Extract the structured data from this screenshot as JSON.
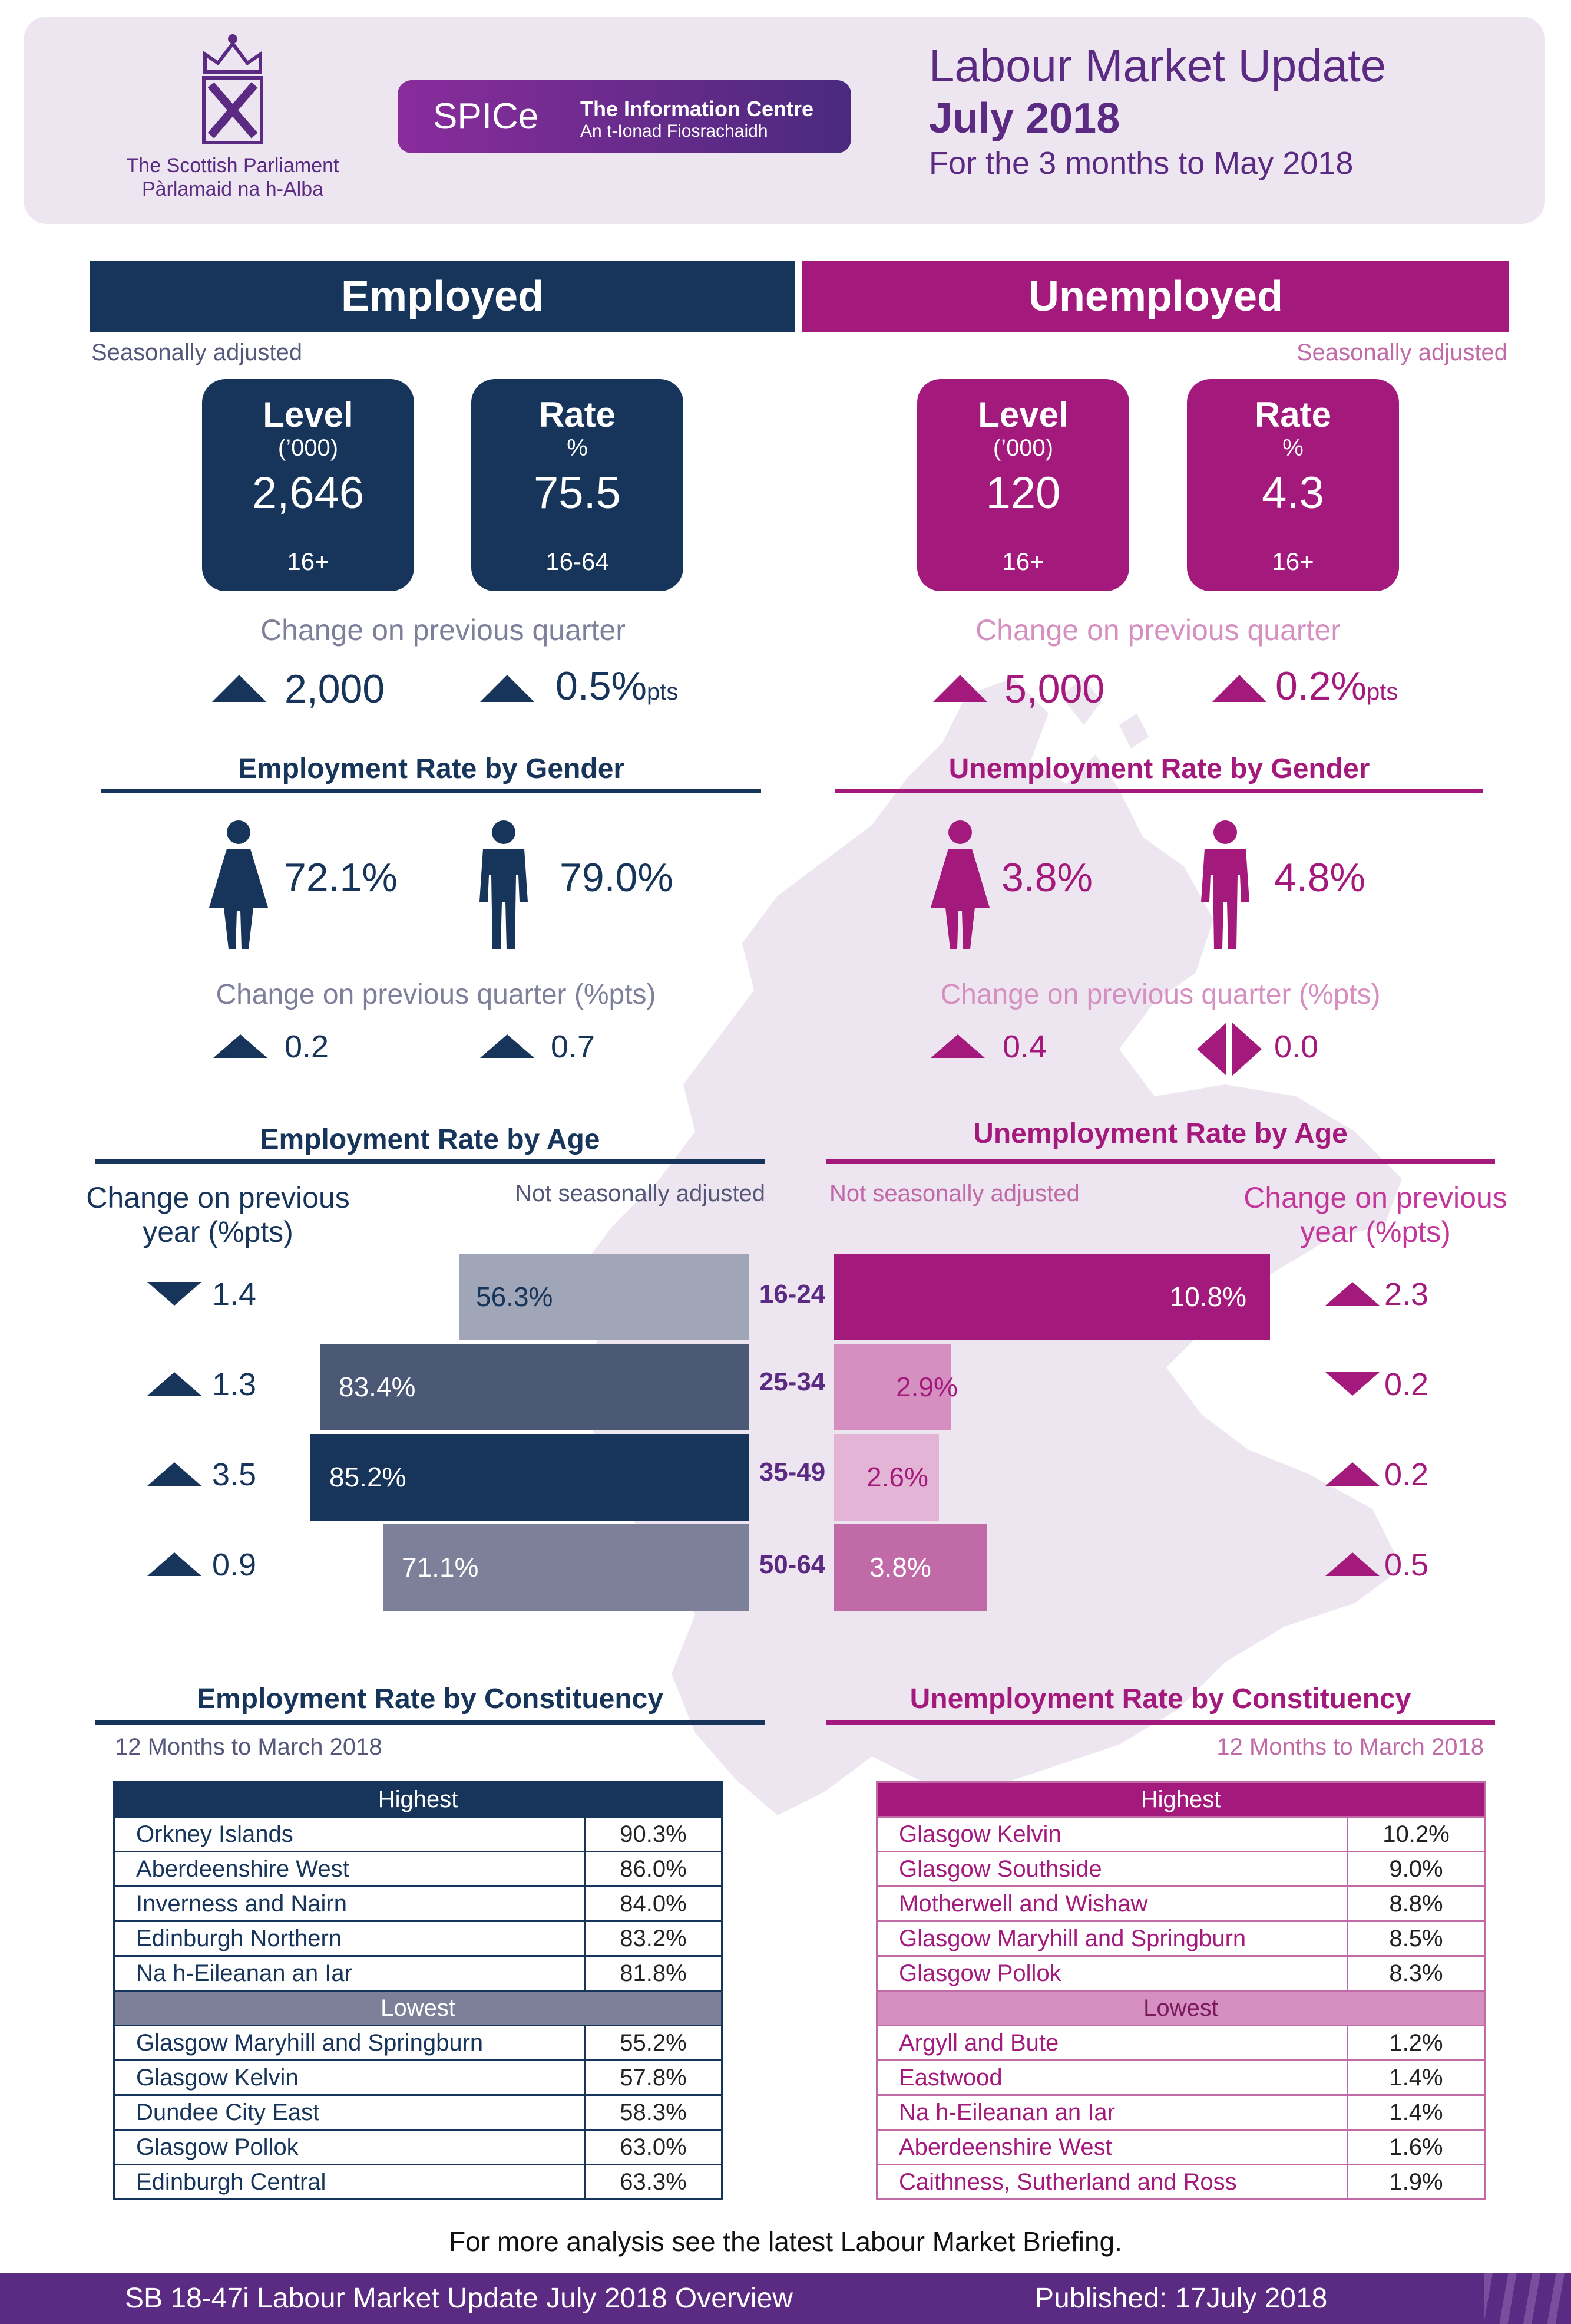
{
  "header": {
    "parliament_en": "The Scottish Parliament",
    "parliament_gd": "Pàrlamaid na h-Alba",
    "spice_logo": "SPICe",
    "spice_title": "The Information Centre",
    "spice_subtitle": "An t-Ionad Fiosrachaidh",
    "title": "Labour Market Update",
    "month": "July 2018",
    "period": "For the 3 months to May 2018"
  },
  "employed": {
    "heading": "Employed",
    "note": "Seasonally adjusted",
    "level": {
      "title": "Level",
      "unit": "(’000)",
      "value": "2,646",
      "age": "16+"
    },
    "rate": {
      "title": "Rate",
      "unit": "%",
      "value": "75.5",
      "age": "16-64"
    },
    "change_label": "Change on previous quarter",
    "level_change": "2,000",
    "rate_change": "0.5%",
    "rate_change_unit": "pts"
  },
  "unemployed": {
    "heading": "Unemployed",
    "note": "Seasonally adjusted",
    "level": {
      "title": "Level",
      "unit": "(’000)",
      "value": "120",
      "age": "16+"
    },
    "rate": {
      "title": "Rate",
      "unit": "%",
      "value": "4.3",
      "age": "16+"
    },
    "change_label": "Change on previous quarter",
    "level_change": "5,000",
    "rate_change": "0.2%",
    "rate_change_unit": "pts"
  },
  "gender": {
    "emp_title": "Employment Rate by Gender",
    "unemp_title": "Unemployment Rate by Gender",
    "emp_female": "72.1%",
    "emp_male": "79.0%",
    "unemp_female": "3.8%",
    "unemp_male": "4.8%",
    "change_label": "Change on previous quarter (%pts)",
    "emp_female_change": "0.2",
    "emp_male_change": "0.7",
    "unemp_female_change": "0.4",
    "unemp_male_change": "0.0"
  },
  "age": {
    "emp_title": "Employment Rate by Age",
    "unemp_title": "Unemployment Rate by Age",
    "change_label_line1": "Change on previous",
    "change_label_line2": "year (%pts)",
    "nsa": "Not seasonally adjusted",
    "groups": [
      "16-24",
      "25-34",
      "35-49",
      "50-64"
    ],
    "emp_values": [
      56.3,
      83.4,
      85.2,
      71.1
    ],
    "emp_labels": [
      "56.3%",
      "83.4%",
      "85.2%",
      "71.1%"
    ],
    "emp_changes": [
      "1.4",
      "1.3",
      "3.5",
      "0.9"
    ],
    "emp_dirs": [
      "down",
      "up",
      "up",
      "up"
    ],
    "emp_colors": [
      "#a1a5b8",
      "#4b5876",
      "#17355a",
      "#7c8099"
    ],
    "unemp_values": [
      10.8,
      2.9,
      2.6,
      3.8
    ],
    "unemp_labels": [
      "10.8%",
      "2.9%",
      "2.6%",
      "3.8%"
    ],
    "unemp_changes": [
      "2.3",
      "0.2",
      "0.2",
      "0.5"
    ],
    "unemp_dirs": [
      "up",
      "down",
      "up",
      "up"
    ],
    "unemp_colors": [
      "#a41a7c",
      "#d58fc0",
      "#e4b4d6",
      "#c06aa8"
    ]
  },
  "constituency": {
    "emp_title": "Employment Rate by Constituency",
    "unemp_title": "Unemployment Rate by Constituency",
    "period": "12 Months to March 2018",
    "highest_label": "Highest",
    "lowest_label": "Lowest",
    "emp_highest": [
      {
        "name": "Orkney Islands",
        "value": "90.3%"
      },
      {
        "name": "Aberdeenshire West",
        "value": "86.0%"
      },
      {
        "name": "Inverness and Nairn",
        "value": "84.0%"
      },
      {
        "name": "Edinburgh Northern",
        "value": "83.2%"
      },
      {
        "name": "Na h-Eileanan an Iar",
        "value": "81.8%"
      }
    ],
    "emp_lowest": [
      {
        "name": "Glasgow Maryhill and Springburn",
        "value": "55.2%"
      },
      {
        "name": "Glasgow Kelvin",
        "value": "57.8%"
      },
      {
        "name": "Dundee City East",
        "value": "58.3%"
      },
      {
        "name": "Glasgow Pollok",
        "value": "63.0%"
      },
      {
        "name": "Edinburgh Central",
        "value": "63.3%"
      }
    ],
    "unemp_highest": [
      {
        "name": "Glasgow Kelvin",
        "value": "10.2%"
      },
      {
        "name": "Glasgow Southside",
        "value": "9.0%"
      },
      {
        "name": "Motherwell and Wishaw",
        "value": "8.8%"
      },
      {
        "name": "Glasgow Maryhill and Springburn",
        "value": "8.5%"
      },
      {
        "name": "Glasgow Pollok",
        "value": "8.3%"
      }
    ],
    "unemp_lowest": [
      {
        "name": "Argyll and Bute",
        "value": "1.2%"
      },
      {
        "name": "Eastwood",
        "value": "1.4%"
      },
      {
        "name": "Na h-Eileanan an Iar",
        "value": "1.4%"
      },
      {
        "name": "Aberdeenshire West",
        "value": "1.6%"
      },
      {
        "name": "Caithness, Sutherland and Ross",
        "value": "1.9%"
      }
    ]
  },
  "footer": {
    "more": "For more analysis see the latest Labour Market Briefing.",
    "ref": "SB 18-47i Labour Market Update July 2018 Overview",
    "published": "Published: 17July 2018"
  },
  "colors": {
    "navy": "#17355a",
    "magenta": "#a41a7c",
    "purple": "#5b2a82"
  }
}
